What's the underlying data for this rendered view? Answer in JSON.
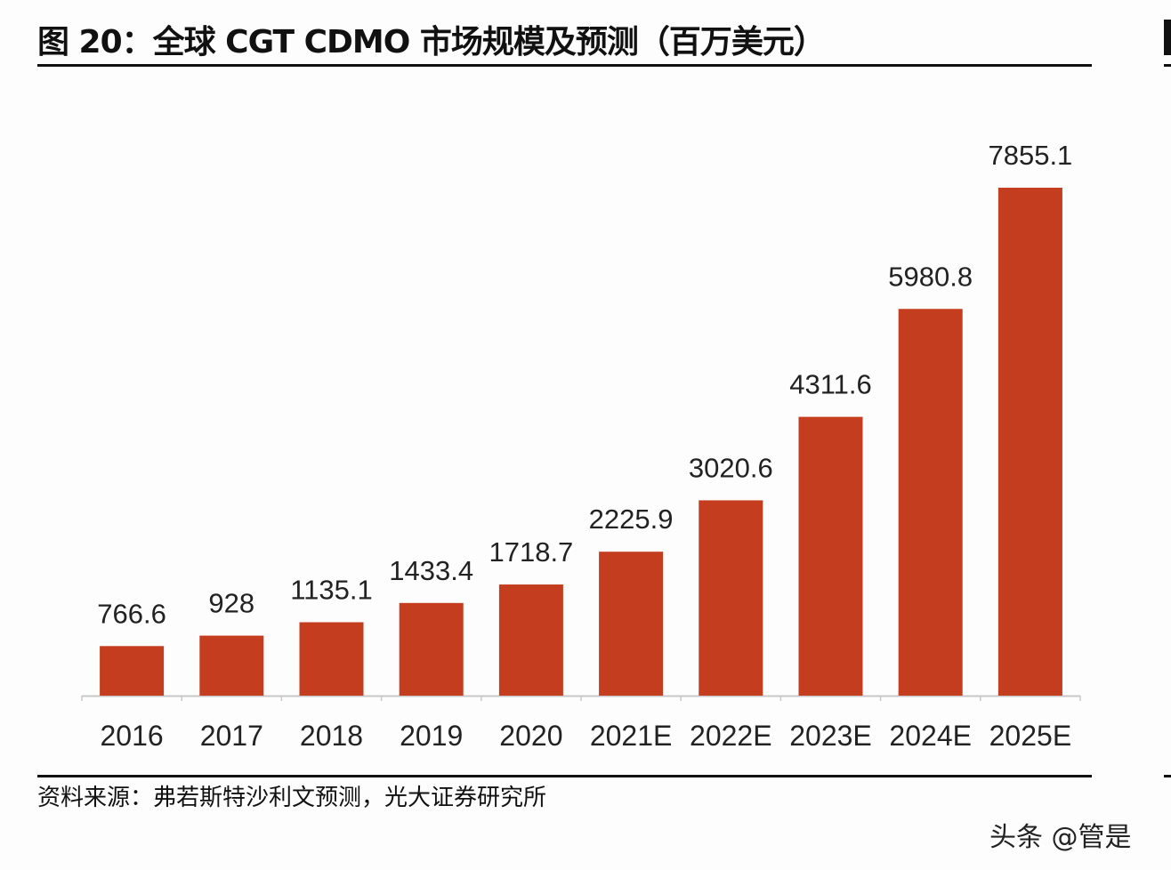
{
  "title": "图 20：全球 CGT CDMO 市场规模及预测（百万美元）",
  "source": "资料来源：弗若斯特沙利文预测，光大证券研究所",
  "watermark": "头条 @管是",
  "chart_data": {
    "type": "bar",
    "title": "图 20：全球 CGT CDMO 市场规模及预测（百万美元）",
    "categories": [
      "2016",
      "2017",
      "2018",
      "2019",
      "2020",
      "2021E",
      "2022E",
      "2023E",
      "2024E",
      "2025E"
    ],
    "values": [
      766.6,
      928,
      1135.1,
      1433.4,
      1718.7,
      2225.9,
      3020.6,
      4311.6,
      5980.8,
      7855.1
    ],
    "value_labels": [
      "766.6",
      "928",
      "1135.1",
      "1433.4",
      "1718.7",
      "2225.9",
      "3020.6",
      "4311.6",
      "5980.8",
      "7855.1"
    ],
    "xlabel": "",
    "ylabel": "",
    "ylim": [
      0,
      8000
    ],
    "grid": false,
    "legend": "none",
    "bar_color": "#C43D1E"
  }
}
